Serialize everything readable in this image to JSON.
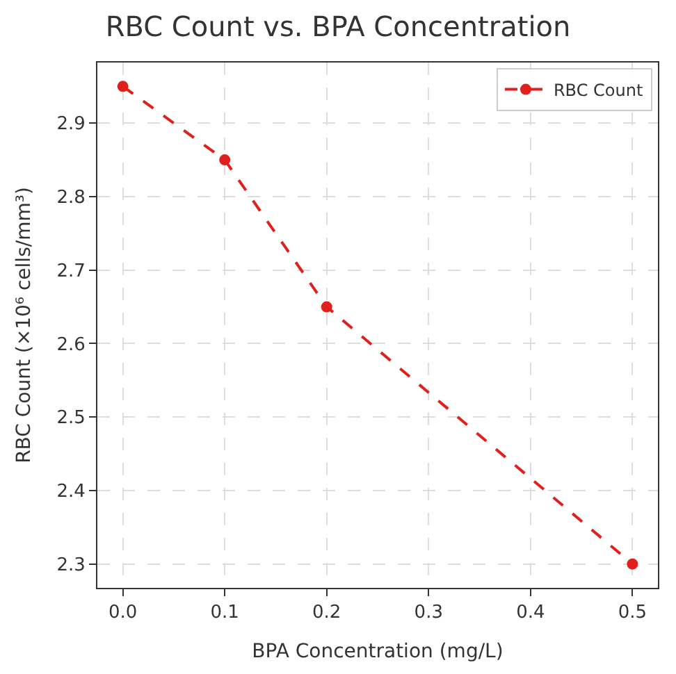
{
  "chart_data": {
    "type": "line",
    "title": "RBC Count vs. BPA Concentration",
    "xlabel": "BPA Concentration (mg/L)",
    "ylabel": "RBC Count (×10⁶ cells/mm³)",
    "x": [
      0.0,
      0.1,
      0.2,
      0.5
    ],
    "series": [
      {
        "name": "RBC Count",
        "color": "#e0201c",
        "values": [
          2.95,
          2.85,
          2.65,
          2.3
        ]
      }
    ],
    "xlim": [
      -0.025,
      0.525
    ],
    "xticks": [
      {
        "value": 0.0,
        "label": "0.0"
      },
      0.1,
      0.2,
      0.3,
      0.4,
      0.5
    ],
    "ylim": [
      2.2675,
      2.9825
    ],
    "yticks": [
      2.3,
      2.4,
      2.5,
      2.6,
      2.7,
      2.8,
      2.9
    ],
    "grid": true,
    "legend": "top right",
    "marker": "circle",
    "line_style": "dashed"
  }
}
